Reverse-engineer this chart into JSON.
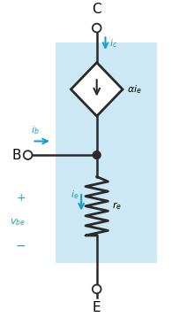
{
  "bg_color": "#cce8f4",
  "wire_color": "#2a2a2a",
  "cyan_color": "#1a9dce",
  "C_label": "C",
  "E_label": "E",
  "B_label": "B",
  "ic_label": "$i_c$",
  "ib_label": "$i_b$",
  "ie_label": "$i_e$",
  "alpha_label": "$\\alpha i_e$",
  "re_label": "$r_e$",
  "vbe_label": "$v_{be}$",
  "plus_label": "+",
  "minus_label": "−",
  "figw": 1.95,
  "figh": 3.58,
  "dpi": 100
}
